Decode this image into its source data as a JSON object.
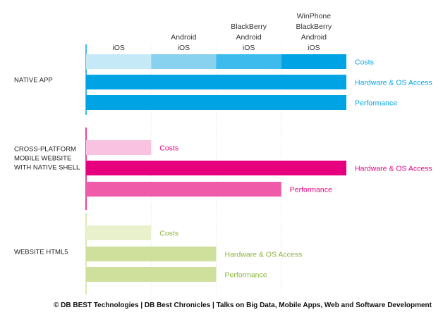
{
  "chart_data": {
    "type": "bar",
    "orientation": "horizontal",
    "x_levels": [
      [
        "iOS"
      ],
      [
        "Android",
        "iOS"
      ],
      [
        "BlackBerry",
        "Android",
        "iOS"
      ],
      [
        "WinPhone",
        "BlackBerry",
        "Android",
        "iOS"
      ]
    ],
    "xlim": [
      0,
      4
    ],
    "groups": [
      {
        "name": [
          "NATIVE APP"
        ],
        "color": "#00a4e4",
        "label_color": "#00a4e4",
        "bars": [
          {
            "label": "Costs",
            "value": 4,
            "segmented": true
          },
          {
            "label": "Hardware & OS Access",
            "value": 4
          },
          {
            "label": "Performance",
            "value": 4
          }
        ]
      },
      {
        "name": [
          "CROSS-PLATFORM",
          "MOBILE WEBSITE",
          "WITH NATIVE SHELL"
        ],
        "color": "#e6007e",
        "label_color": "#e6007e",
        "bars": [
          {
            "label": "Costs",
            "value": 1,
            "color": "#f9c2e0"
          },
          {
            "label": "Hardware & OS Access",
            "value": 4
          },
          {
            "label": "Performance",
            "value": 3,
            "color": "#ef5ba8"
          }
        ]
      },
      {
        "name": [
          "WEBSITE HTML5"
        ],
        "color": "#cfe09c",
        "label_color": "#8cb43c",
        "bars": [
          {
            "label": "Costs",
            "value": 1,
            "color": "#e8f0cc"
          },
          {
            "label": "Hardware & OS Access",
            "value": 2
          },
          {
            "label": "Performance",
            "value": 2
          }
        ]
      }
    ],
    "segment_colors": [
      "#c6e9f8",
      "#88d2f0",
      "#3dbbec",
      "#00a4e4"
    ],
    "footer": "© DB BEST Technologies | DB Best Chronicles | Talks on Big Data, Mobile Apps, Web and Software Development"
  }
}
